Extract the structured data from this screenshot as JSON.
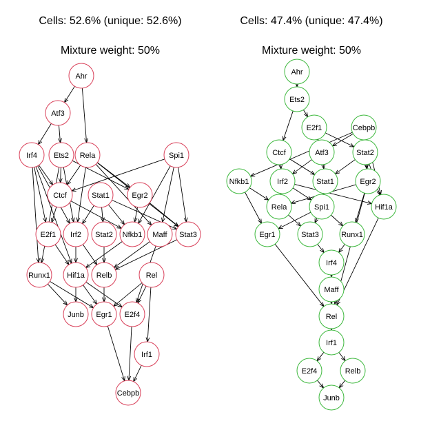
{
  "panels": [
    {
      "cells_text": "Cells: 52.6% (unique: 52.6%)",
      "weight_text": "Mixture weight: 50%",
      "node_color": "#d9415a",
      "nodes": [
        "Ahr",
        "Atf3",
        "Irf4",
        "Ets2",
        "Rela",
        "Spi1",
        "Ctcf",
        "Stat1",
        "Egr2",
        "E2f1",
        "Irf2",
        "Stat2",
        "Nfkb1",
        "Maff",
        "Stat3",
        "Runx1",
        "Hif1a",
        "Relb",
        "Rel",
        "Junb",
        "Egr1",
        "E2f4",
        "Irf1",
        "Cebpb"
      ],
      "edges": [
        [
          "Ahr",
          "Atf3"
        ],
        [
          "Ahr",
          "Rela"
        ],
        [
          "Atf3",
          "Irf4"
        ],
        [
          "Atf3",
          "Ets2"
        ],
        [
          "Irf4",
          "Ctcf"
        ],
        [
          "Irf4",
          "E2f1"
        ],
        [
          "Irf4",
          "Irf2"
        ],
        [
          "Irf4",
          "Runx1"
        ],
        [
          "Irf4",
          "Hif1a"
        ],
        [
          "Ets2",
          "Ctcf"
        ],
        [
          "Ets2",
          "Egr2"
        ],
        [
          "Ets2",
          "Irf2"
        ],
        [
          "Ets2",
          "Runx1"
        ],
        [
          "Rela",
          "Ctcf"
        ],
        [
          "Rela",
          "Egr2"
        ],
        [
          "Rela",
          "Irf2"
        ],
        [
          "Rela",
          "Stat3"
        ],
        [
          "Rela",
          "Maff"
        ],
        [
          "Spi1",
          "Ctcf"
        ],
        [
          "Spi1",
          "Nfkb1"
        ],
        [
          "Spi1",
          "Maff"
        ],
        [
          "Spi1",
          "Stat3"
        ],
        [
          "Ctcf",
          "E2f1"
        ],
        [
          "Ctcf",
          "Nfkb1"
        ],
        [
          "Stat1",
          "Irf2"
        ],
        [
          "Stat1",
          "Stat2"
        ],
        [
          "Stat1",
          "Nfkb1"
        ],
        [
          "Stat1",
          "Stat3"
        ],
        [
          "Egr2",
          "Nfkb1"
        ],
        [
          "Egr2",
          "Stat3"
        ],
        [
          "E2f1",
          "Hif1a"
        ],
        [
          "Irf2",
          "Hif1a"
        ],
        [
          "Irf2",
          "Relb"
        ],
        [
          "Stat2",
          "Relb"
        ],
        [
          "Nfkb1",
          "Hif1a"
        ],
        [
          "Maff",
          "Relb"
        ],
        [
          "Maff",
          "E2f4"
        ],
        [
          "Stat3",
          "Relb"
        ],
        [
          "Runx1",
          "Junb"
        ],
        [
          "Runx1",
          "Egr1"
        ],
        [
          "Hif1a",
          "Junb"
        ],
        [
          "Hif1a",
          "Egr1"
        ],
        [
          "Hif1a",
          "E2f4"
        ],
        [
          "Relb",
          "Egr1"
        ],
        [
          "Rel",
          "Egr1"
        ],
        [
          "Rel",
          "E2f4"
        ],
        [
          "Rel",
          "Irf1"
        ],
        [
          "Egr1",
          "Cebpb"
        ],
        [
          "E2f4",
          "Cebpb"
        ],
        [
          "Irf1",
          "Cebpb"
        ]
      ]
    },
    {
      "cells_text": "Cells: 47.4% (unique: 47.4%)",
      "weight_text": "Mixture weight: 50%",
      "node_color": "#3db83d",
      "nodes": [
        "Ahr",
        "Ets2",
        "E2f1",
        "Cebpb",
        "Ctcf",
        "Atf3",
        "Stat2",
        "Nfkb1",
        "Irf2",
        "Stat1",
        "Egr2",
        "Rela",
        "Spi1",
        "Hif1a",
        "Egr1",
        "Stat3",
        "Runx1",
        "Irf4",
        "Maff",
        "Rel",
        "Irf1",
        "E2f4",
        "Relb",
        "Junb"
      ],
      "edges": [
        [
          "Ahr",
          "Ets2"
        ],
        [
          "Ets2",
          "E2f1"
        ],
        [
          "Ets2",
          "Ctcf"
        ],
        [
          "E2f1",
          "Atf3"
        ],
        [
          "E2f1",
          "Stat2"
        ],
        [
          "Cebpb",
          "Nfkb1"
        ],
        [
          "Cebpb",
          "Atf3"
        ],
        [
          "Cebpb",
          "Stat2"
        ],
        [
          "Cebpb",
          "Egr2"
        ],
        [
          "Cebpb",
          "Hif1a"
        ],
        [
          "Ctcf",
          "Irf2"
        ],
        [
          "Ctcf",
          "Stat1"
        ],
        [
          "Atf3",
          "Irf2"
        ],
        [
          "Atf3",
          "Stat1"
        ],
        [
          "Stat2",
          "Stat1"
        ],
        [
          "Stat2",
          "Egr2"
        ],
        [
          "Stat2",
          "Hif1a"
        ],
        [
          "Nfkb1",
          "Rela"
        ],
        [
          "Nfkb1",
          "Egr1"
        ],
        [
          "Irf2",
          "Rela"
        ],
        [
          "Irf2",
          "Spi1"
        ],
        [
          "Irf2",
          "Hif1a"
        ],
        [
          "Stat1",
          "Spi1"
        ],
        [
          "Egr2",
          "Rela"
        ],
        [
          "Egr2",
          "Runx1"
        ],
        [
          "Egr2",
          "Rel"
        ],
        [
          "Rela",
          "Stat3"
        ],
        [
          "Spi1",
          "Egr1"
        ],
        [
          "Spi1",
          "Stat3"
        ],
        [
          "Spi1",
          "Runx1"
        ],
        [
          "Stat3",
          "Irf4"
        ],
        [
          "Runx1",
          "Irf4"
        ],
        [
          "Irf4",
          "Maff"
        ],
        [
          "Maff",
          "Rel"
        ],
        [
          "Egr1",
          "Rel"
        ],
        [
          "Hif1a",
          "Rel"
        ],
        [
          "Rel",
          "Irf1"
        ],
        [
          "Irf1",
          "E2f4"
        ],
        [
          "Irf1",
          "Relb"
        ],
        [
          "E2f4",
          "Junb"
        ],
        [
          "Relb",
          "Junb"
        ]
      ]
    }
  ]
}
